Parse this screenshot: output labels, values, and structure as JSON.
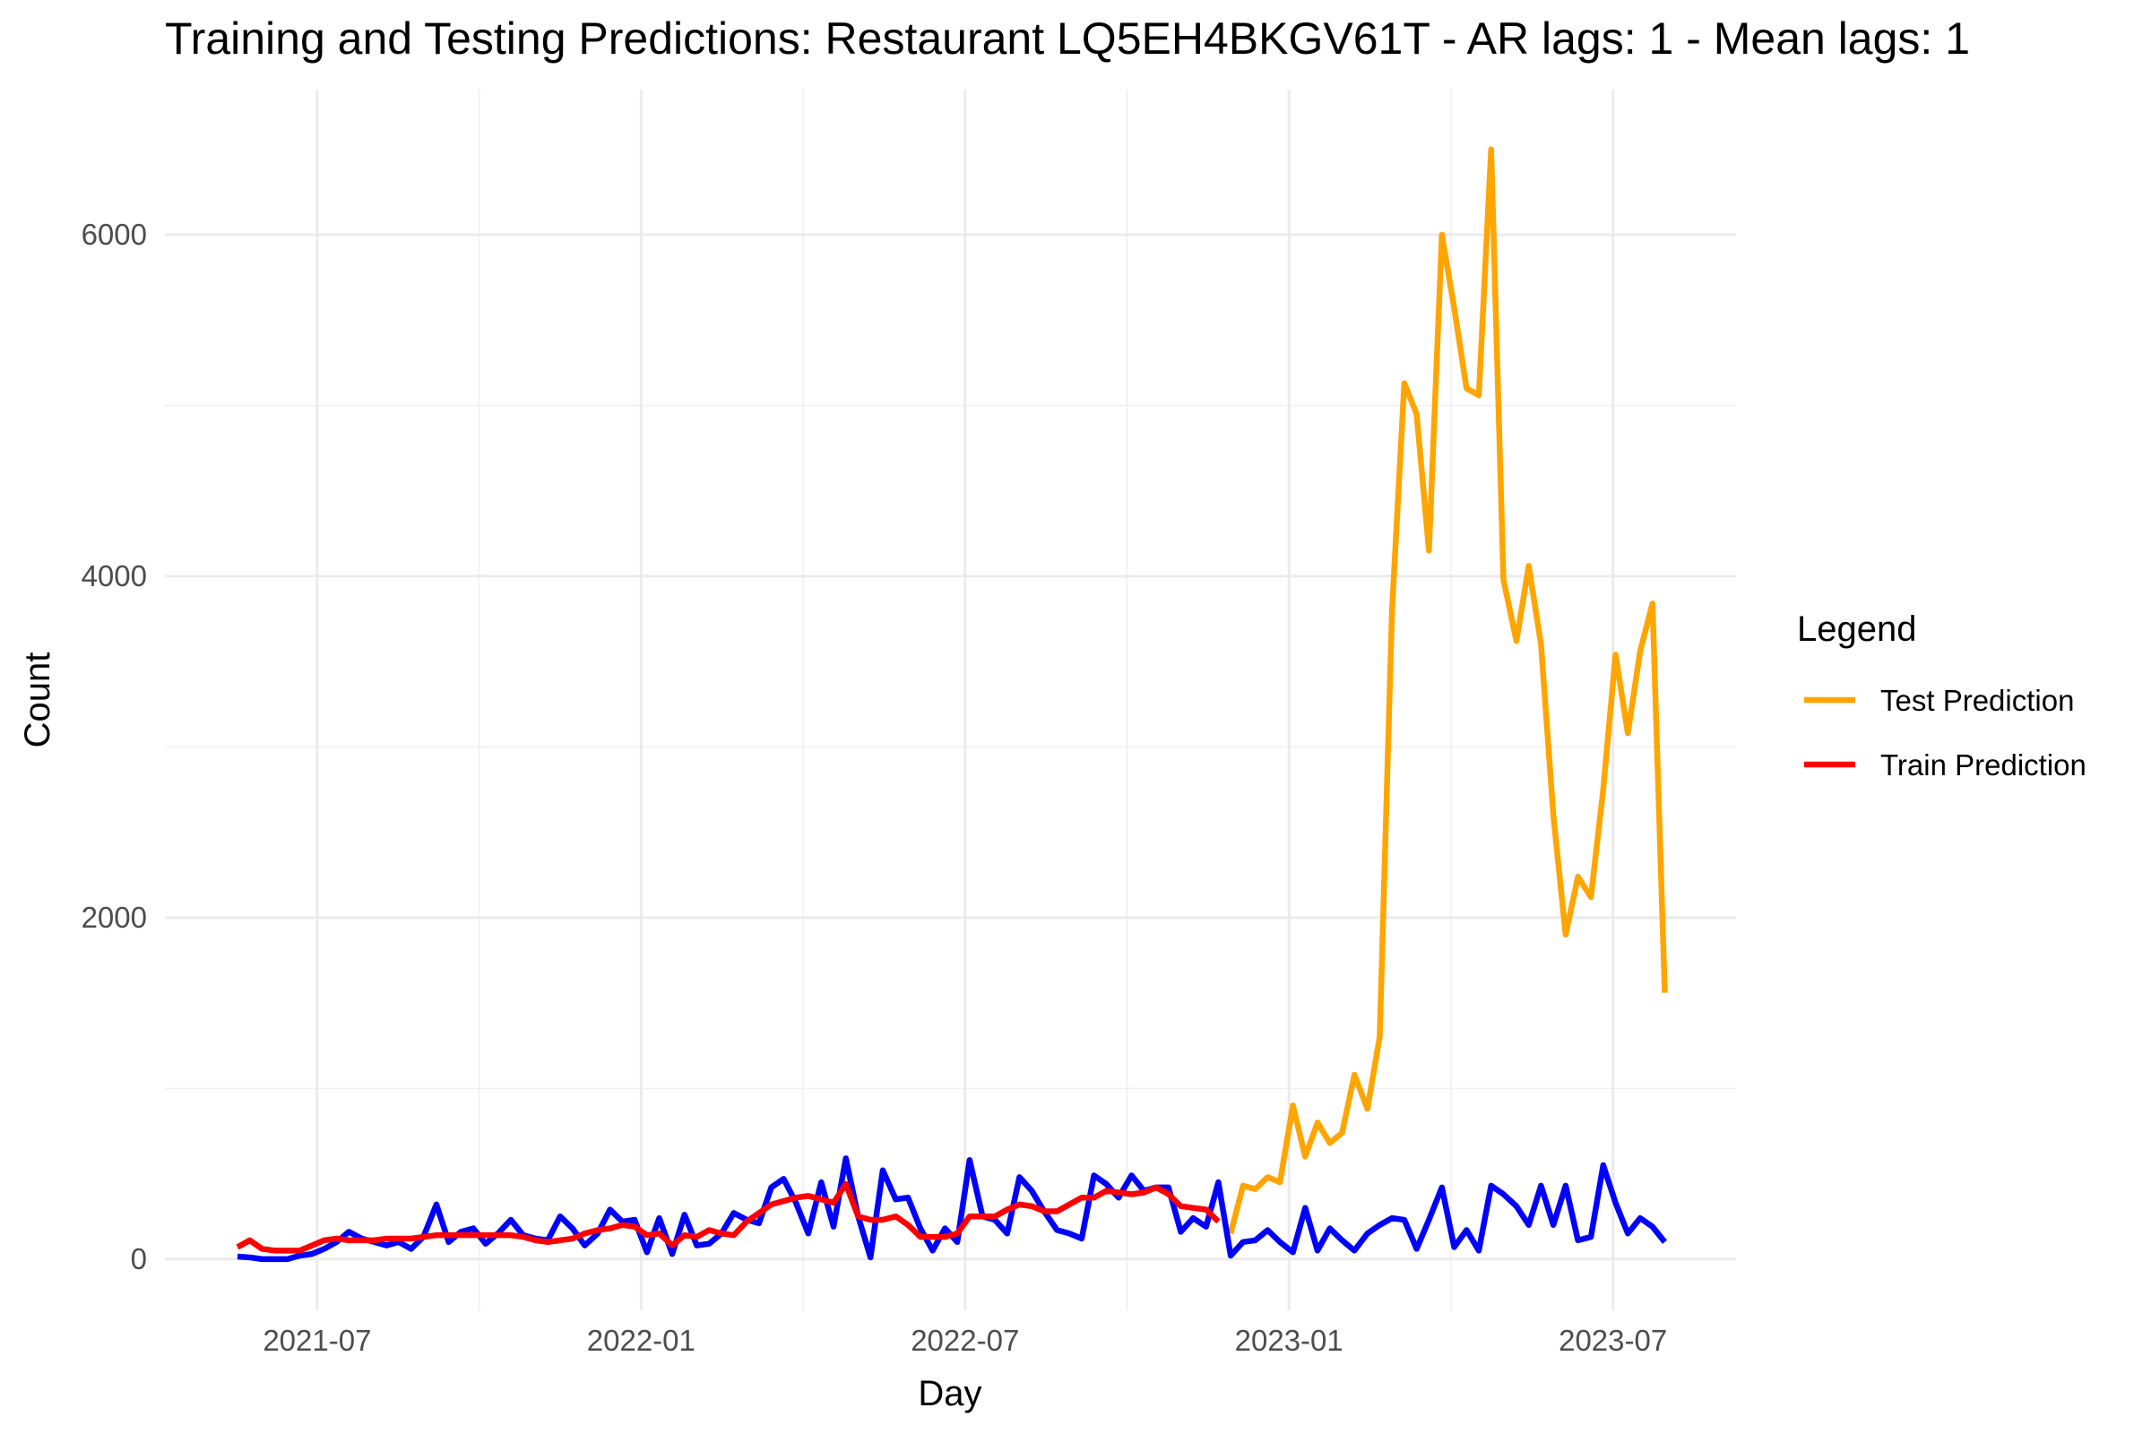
{
  "chart_data": {
    "type": "line",
    "title": "Training and Testing Predictions: Restaurant LQ5EH4BKGV61T - AR lags: 1 - Mean lags: 1",
    "x_label": "Day",
    "y_label": "Count",
    "legend_title": "Legend",
    "legend_position": "right",
    "grid": true,
    "x": [
      2021.377,
      2021.396,
      2021.415,
      2021.434,
      2021.454,
      2021.473,
      2021.492,
      2021.511,
      2021.53,
      2021.549,
      2021.569,
      2021.588,
      2021.607,
      2021.626,
      2021.645,
      2021.664,
      2021.684,
      2021.703,
      2021.722,
      2021.741,
      2021.76,
      2021.779,
      2021.799,
      2021.818,
      2021.837,
      2021.856,
      2021.875,
      2021.894,
      2021.913,
      2021.933,
      2021.952,
      2021.971,
      2021.99,
      2022.009,
      2022.028,
      2022.048,
      2022.067,
      2022.086,
      2022.105,
      2022.124,
      2022.143,
      2022.163,
      2022.182,
      2022.201,
      2022.22,
      2022.239,
      2022.258,
      2022.278,
      2022.297,
      2022.316,
      2022.335,
      2022.354,
      2022.373,
      2022.393,
      2022.412,
      2022.431,
      2022.45,
      2022.469,
      2022.488,
      2022.507,
      2022.527,
      2022.546,
      2022.565,
      2022.584,
      2022.603,
      2022.622,
      2022.642,
      2022.661,
      2022.68,
      2022.699,
      2022.718,
      2022.737,
      2022.757,
      2022.776,
      2022.795,
      2022.814,
      2022.833,
      2022.852,
      2022.872,
      2022.891,
      2022.91,
      2022.929,
      2022.948,
      2022.967,
      2022.986,
      2023.006,
      2023.025,
      2023.044,
      2023.063,
      2023.082,
      2023.101,
      2023.121,
      2023.14,
      2023.159,
      2023.178,
      2023.197,
      2023.216,
      2023.236,
      2023.255,
      2023.274,
      2023.293,
      2023.312,
      2023.331,
      2023.351,
      2023.37,
      2023.389,
      2023.408,
      2023.427,
      2023.446,
      2023.466,
      2023.485,
      2023.504,
      2023.523,
      2023.542,
      2023.561,
      2023.58
    ],
    "series": [
      {
        "name": "Test Prediction",
        "color": "#ffa500",
        "values": [
          null,
          null,
          null,
          null,
          null,
          null,
          null,
          null,
          null,
          null,
          null,
          null,
          null,
          null,
          null,
          null,
          null,
          null,
          null,
          null,
          null,
          null,
          null,
          null,
          null,
          null,
          null,
          null,
          null,
          null,
          null,
          null,
          null,
          null,
          null,
          null,
          null,
          null,
          null,
          null,
          null,
          null,
          null,
          null,
          null,
          null,
          null,
          null,
          null,
          null,
          null,
          null,
          null,
          null,
          null,
          null,
          null,
          null,
          null,
          null,
          null,
          null,
          null,
          null,
          null,
          null,
          null,
          null,
          null,
          null,
          null,
          null,
          null,
          null,
          null,
          null,
          null,
          null,
          null,
          null,
          150,
          430,
          410,
          480,
          450,
          900,
          600,
          800,
          680,
          740,
          1080,
          880,
          1300,
          3800,
          5130,
          4950,
          4150,
          6000,
          5570,
          5100,
          5060,
          6500,
          3980,
          3620,
          4060,
          3600,
          2600,
          1900,
          2240,
          2120,
          2750,
          3540,
          3080,
          3560,
          3840,
          1560
        ]
      },
      {
        "color": "#0000ff",
        "values": [
          15,
          10,
          0,
          0,
          0,
          20,
          30,
          60,
          100,
          160,
          120,
          100,
          80,
          100,
          60,
          130,
          320,
          100,
          160,
          180,
          90,
          150,
          230,
          140,
          120,
          110,
          250,
          180,
          80,
          150,
          290,
          220,
          230,
          40,
          240,
          30,
          260,
          80,
          90,
          150,
          270,
          230,
          210,
          420,
          470,
          330,
          150,
          450,
          190,
          590,
          250,
          10,
          520,
          350,
          360,
          180,
          50,
          180,
          100,
          580,
          250,
          230,
          150,
          480,
          400,
          280,
          170,
          150,
          120,
          490,
          440,
          360,
          490,
          400,
          420,
          420,
          160,
          240,
          190,
          450,
          20,
          100,
          110,
          170,
          100,
          40,
          300,
          50,
          180,
          110,
          50,
          150,
          200,
          240,
          230,
          60,
          230,
          420,
          70,
          170,
          50,
          430,
          380,
          310,
          200,
          430,
          200,
          430,
          110,
          130,
          550,
          330,
          150,
          240,
          190,
          100
        ]
      },
      {
        "name": "Train Prediction",
        "color": "#ff0000",
        "values": [
          70,
          110,
          60,
          50,
          50,
          50,
          80,
          110,
          120,
          110,
          110,
          110,
          120,
          120,
          120,
          130,
          140,
          140,
          140,
          140,
          140,
          140,
          140,
          130,
          110,
          100,
          110,
          120,
          150,
          170,
          180,
          200,
          190,
          140,
          150,
          80,
          140,
          130,
          170,
          150,
          140,
          220,
          270,
          320,
          340,
          360,
          370,
          350,
          330,
          440,
          250,
          230,
          230,
          250,
          200,
          130,
          130,
          130,
          150,
          250,
          250,
          250,
          290,
          320,
          310,
          280,
          280,
          320,
          360,
          360,
          400,
          390,
          380,
          390,
          420,
          380,
          310,
          300,
          290,
          220,
          null,
          null,
          null,
          null,
          null,
          null,
          null,
          null,
          null,
          null,
          null,
          null,
          null,
          null,
          null,
          null,
          null,
          null,
          null,
          null,
          null,
          null,
          null,
          null,
          null,
          null,
          null,
          null,
          null,
          null,
          null,
          null,
          null,
          null,
          null,
          null
        ]
      }
    ],
    "xlim": [
      2021.265,
      2023.69
    ],
    "xticks": [
      {
        "value": 2021.5,
        "label": "2021-07"
      },
      {
        "value": 2022.0,
        "label": "2022-01"
      },
      {
        "value": 2022.5,
        "label": "2022-07"
      },
      {
        "value": 2023.0,
        "label": "2023-01"
      },
      {
        "value": 2023.5,
        "label": "2023-07"
      }
    ],
    "x_minor_gridlines": [
      2021.75,
      2022.25,
      2022.75,
      2023.25
    ],
    "ylim": [
      -300,
      6850
    ],
    "yticks": [
      0,
      2000,
      4000,
      6000
    ],
    "y_minor_gridlines": [
      1000,
      3000,
      5000
    ]
  }
}
